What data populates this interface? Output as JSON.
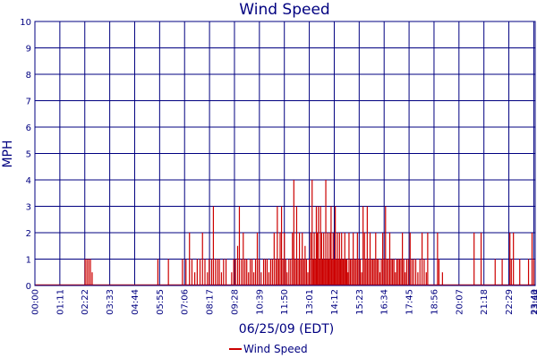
{
  "chart_data": {
    "type": "bar",
    "title": "Wind Speed",
    "xlabel": "06/25/09 (EDT)",
    "ylabel": "MPH",
    "ylim": [
      0,
      10
    ],
    "y_ticks": [
      "0",
      "1",
      "2",
      "3",
      "4",
      "5",
      "6",
      "7",
      "8",
      "9",
      "10"
    ],
    "x_ticks": [
      "00:00",
      "01:11",
      "02:22",
      "03:33",
      "04:44",
      "05:55",
      "07:06",
      "08:17",
      "09:28",
      "10:39",
      "11:50",
      "13:01",
      "14:12",
      "15:23",
      "16:34",
      "17:45",
      "18:56",
      "20:07",
      "21:18",
      "22:29",
      "23:40",
      "23:44"
    ],
    "x_range_minutes": [
      0,
      1424
    ],
    "grid": true,
    "legend": "bottom-center",
    "colors": {
      "series": "#cc0000",
      "axes": "#000080",
      "grid": "#000080"
    },
    "series": [
      {
        "name": "Wind Speed",
        "points": [
          [
            143,
            1
          ],
          [
            148,
            1
          ],
          [
            153,
            1
          ],
          [
            158,
            1
          ],
          [
            163,
            0.5
          ],
          [
            350,
            1
          ],
          [
            380,
            1
          ],
          [
            420,
            1
          ],
          [
            430,
            1
          ],
          [
            440,
            2
          ],
          [
            447,
            1
          ],
          [
            455,
            0.5
          ],
          [
            462,
            1
          ],
          [
            470,
            1
          ],
          [
            477,
            2
          ],
          [
            484,
            1
          ],
          [
            491,
            0.5
          ],
          [
            496,
            1
          ],
          [
            503,
            1
          ],
          [
            508,
            3
          ],
          [
            514,
            1
          ],
          [
            520,
            1
          ],
          [
            525,
            1
          ],
          [
            531,
            0.5
          ],
          [
            537,
            1
          ],
          [
            544,
            1
          ],
          [
            560,
            0.5
          ],
          [
            566,
            1
          ],
          [
            571,
            1
          ],
          [
            577,
            1.5
          ],
          [
            582,
            3
          ],
          [
            588,
            1
          ],
          [
            593,
            2
          ],
          [
            598,
            1
          ],
          [
            603,
            1
          ],
          [
            608,
            0.5
          ],
          [
            613,
            1
          ],
          [
            618,
            1
          ],
          [
            623,
            0.5
          ],
          [
            628,
            1
          ],
          [
            633,
            2
          ],
          [
            638,
            1
          ],
          [
            644,
            0.5
          ],
          [
            651,
            1
          ],
          [
            656,
            1
          ],
          [
            661,
            1
          ],
          [
            666,
            0.5
          ],
          [
            671,
            1
          ],
          [
            676,
            1
          ],
          [
            681,
            2
          ],
          [
            686,
            1
          ],
          [
            690,
            3
          ],
          [
            694,
            1
          ],
          [
            698,
            2
          ],
          [
            702,
            3
          ],
          [
            706,
            1
          ],
          [
            710,
            2
          ],
          [
            714,
            1
          ],
          [
            718,
            0.5
          ],
          [
            723,
            1
          ],
          [
            728,
            1
          ],
          [
            733,
            2
          ],
          [
            737,
            4
          ],
          [
            741,
            1
          ],
          [
            745,
            3
          ],
          [
            749,
            1
          ],
          [
            753,
            2
          ],
          [
            757,
            1
          ],
          [
            761,
            2
          ],
          [
            765,
            1
          ],
          [
            769,
            1.5
          ],
          [
            773,
            1
          ],
          [
            777,
            0.5
          ],
          [
            781,
            1
          ],
          [
            785,
            2
          ],
          [
            789,
            4
          ],
          [
            792,
            1
          ],
          [
            795,
            2
          ],
          [
            798,
            1
          ],
          [
            801,
            3
          ],
          [
            804,
            2
          ],
          [
            807,
            3
          ],
          [
            810,
            1
          ],
          [
            813,
            3
          ],
          [
            816,
            2
          ],
          [
            819,
            1
          ],
          [
            822,
            2
          ],
          [
            825,
            1
          ],
          [
            828,
            4
          ],
          [
            831,
            1
          ],
          [
            834,
            2
          ],
          [
            837,
            1
          ],
          [
            840,
            2
          ],
          [
            843,
            3
          ],
          [
            846,
            1
          ],
          [
            849,
            2
          ],
          [
            852,
            1
          ],
          [
            855,
            3
          ],
          [
            858,
            1
          ],
          [
            861,
            2
          ],
          [
            864,
            1
          ],
          [
            867,
            2
          ],
          [
            870,
            1
          ],
          [
            873,
            2
          ],
          [
            876,
            1
          ],
          [
            879,
            1
          ],
          [
            882,
            2
          ],
          [
            885,
            1
          ],
          [
            888,
            1
          ],
          [
            891,
            0.5
          ],
          [
            894,
            2
          ],
          [
            898,
            1
          ],
          [
            902,
            1
          ],
          [
            906,
            2
          ],
          [
            910,
            1
          ],
          [
            914,
            1
          ],
          [
            918,
            2
          ],
          [
            922,
            1
          ],
          [
            926,
            1
          ],
          [
            930,
            0.5
          ],
          [
            934,
            3
          ],
          [
            938,
            2
          ],
          [
            942,
            1
          ],
          [
            946,
            3
          ],
          [
            950,
            1
          ],
          [
            954,
            2
          ],
          [
            958,
            1
          ],
          [
            962,
            1
          ],
          [
            966,
            1
          ],
          [
            970,
            2
          ],
          [
            974,
            1
          ],
          [
            978,
            1
          ],
          [
            982,
            0.5
          ],
          [
            986,
            1
          ],
          [
            990,
            2
          ],
          [
            994,
            1
          ],
          [
            998,
            3
          ],
          [
            1002,
            1
          ],
          [
            1006,
            1
          ],
          [
            1010,
            2
          ],
          [
            1014,
            1
          ],
          [
            1018,
            1
          ],
          [
            1022,
            1
          ],
          [
            1026,
            0.5
          ],
          [
            1030,
            1
          ],
          [
            1034,
            1
          ],
          [
            1038,
            1
          ],
          [
            1042,
            1
          ],
          [
            1046,
            2
          ],
          [
            1050,
            1
          ],
          [
            1054,
            0.5
          ],
          [
            1058,
            1
          ],
          [
            1063,
            1
          ],
          [
            1068,
            2
          ],
          [
            1073,
            1
          ],
          [
            1078,
            1
          ],
          [
            1084,
            1
          ],
          [
            1090,
            0.5
          ],
          [
            1096,
            1
          ],
          [
            1102,
            2
          ],
          [
            1108,
            1
          ],
          [
            1114,
            0.5
          ],
          [
            1118,
            2
          ],
          [
            1146,
            2
          ],
          [
            1150,
            1
          ],
          [
            1160,
            0.5
          ],
          [
            1250,
            2
          ],
          [
            1270,
            2
          ],
          [
            1310,
            1
          ],
          [
            1330,
            1
          ],
          [
            1352,
            2
          ],
          [
            1356,
            1
          ],
          [
            1362,
            2
          ],
          [
            1380,
            1
          ],
          [
            1405,
            1
          ],
          [
            1415,
            2
          ],
          [
            1420,
            1
          ]
        ]
      }
    ]
  }
}
